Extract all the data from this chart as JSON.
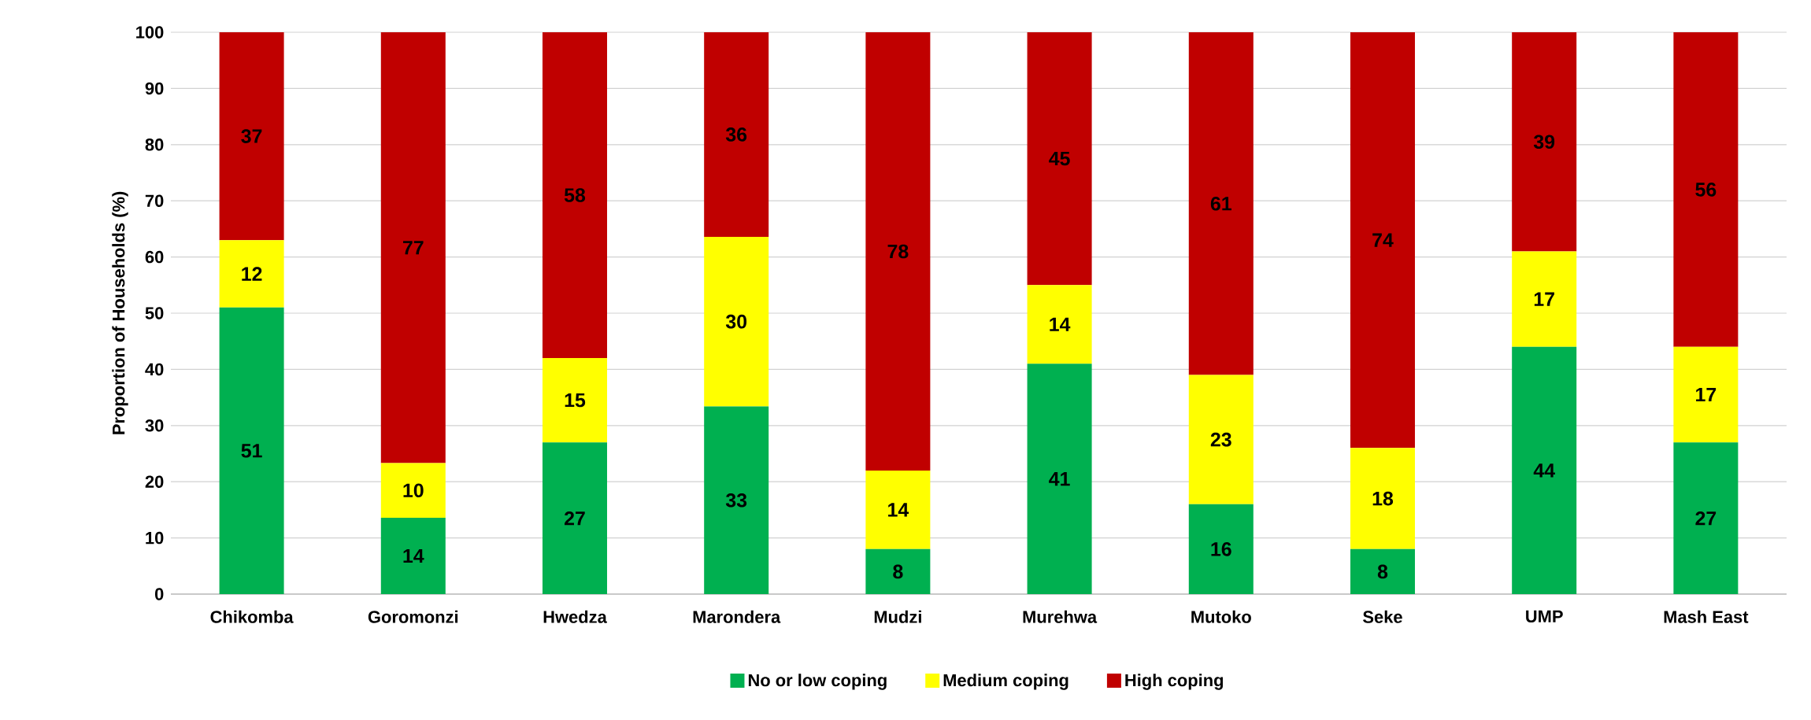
{
  "chart_data": {
    "type": "bar",
    "stacked": true,
    "ylabel": "Proportion of Households (%)",
    "categories": [
      "Chikomba",
      "Goromonzi",
      "Hwedza",
      "Marondera",
      "Mudzi",
      "Murehwa",
      "Mutoko",
      "Seke",
      "UMP",
      "Mash East"
    ],
    "series": [
      {
        "name": "No or low coping",
        "color": "#00b050",
        "values": [
          51,
          13.6,
          27,
          33.4,
          8,
          41,
          16,
          8,
          44,
          27
        ],
        "value_labels": [
          "51",
          "14",
          "27",
          "33",
          "8",
          "41",
          "16",
          "8",
          "44",
          "27"
        ]
      },
      {
        "name": "Medium coping",
        "color": "#ffff00",
        "values": [
          12,
          9.7,
          15,
          30.2,
          14,
          14,
          23,
          18,
          17,
          17
        ],
        "value_labels": [
          "12",
          "10",
          "15",
          "30",
          "14",
          "14",
          "23",
          "18",
          "17",
          "17"
        ]
      },
      {
        "name": "High coping",
        "color": "#c00000",
        "values": [
          37,
          76.7,
          58,
          36.4,
          78,
          45,
          61,
          74,
          39,
          56
        ],
        "value_labels": [
          "37",
          "77",
          "58",
          "36",
          "78",
          "45",
          "61",
          "74",
          "39",
          "56"
        ]
      }
    ],
    "ylim": [
      0,
      100
    ],
    "yticks": [
      0,
      10,
      20,
      30,
      40,
      50,
      60,
      70,
      80,
      90,
      100
    ],
    "grid": "y",
    "legend": "bottom"
  }
}
